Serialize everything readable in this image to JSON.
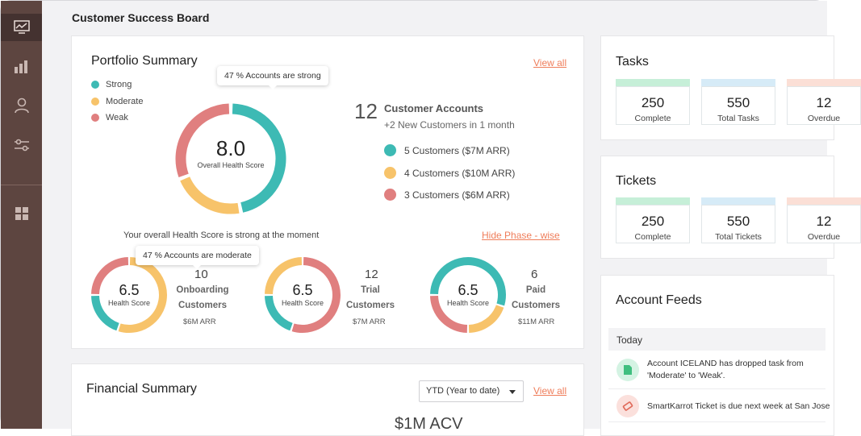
{
  "board": {
    "title": "Customer Success Board"
  },
  "colors": {
    "strong": "#3dbab4",
    "moderate": "#f7c36a",
    "weak": "#e07f7f",
    "accent": "#ef7d5a",
    "sidebar": "#5d4540"
  },
  "sidebar": {
    "items": [
      {
        "icon": "monitor-chart-icon",
        "active": true
      },
      {
        "icon": "bar-chart-icon",
        "active": false
      },
      {
        "icon": "user-icon",
        "active": false
      },
      {
        "icon": "filter-sliders-icon",
        "active": false
      },
      {
        "icon": "grid-icon",
        "active": false
      }
    ]
  },
  "portfolio": {
    "title": "Portfolio Summary",
    "view_all": "View all",
    "legend": [
      {
        "label": "Strong",
        "color": "#3dbab4"
      },
      {
        "label": "Moderate",
        "color": "#f7c36a"
      },
      {
        "label": "Weak",
        "color": "#e07f7f"
      }
    ],
    "tooltip_main": "47 % Accounts are strong",
    "overall_score": "8.0",
    "overall_label": "Overall Health Score",
    "overall_split": {
      "strong": 47,
      "moderate": 22,
      "weak": 31
    },
    "customer_accounts": {
      "count": "12",
      "title": "Customer Accounts",
      "subtitle": "+2 New Customers in 1 month",
      "items": [
        {
          "label": "5 Customers ($7M  ARR)",
          "color": "#3dbab4"
        },
        {
          "label": "4 Customers ($10M ARR)",
          "color": "#f7c36a"
        },
        {
          "label": "3 Customers ($6M  ARR)",
          "color": "#e07f7f"
        }
      ]
    },
    "health_statement": "Your overall Health Score is strong at the moment",
    "hide_phase": "Hide  Phase - wise",
    "tooltip_phase": "47 % Accounts are moderate",
    "phases": [
      {
        "score": "6.5",
        "score_label": "Health Score",
        "count": "10",
        "line1": "Onboarding",
        "line2": "Customers",
        "arr": "$6M ARR",
        "split": {
          "moderate": 55,
          "strong": 20,
          "weak": 25
        }
      },
      {
        "score": "6.5",
        "score_label": "Health Score",
        "count": "12",
        "line1": "Trial",
        "line2": "Customers",
        "arr": "$7M ARR",
        "split": {
          "weak": 55,
          "strong": 20,
          "moderate": 25
        }
      },
      {
        "score": "6.5",
        "score_label": "Health Score",
        "count": "6",
        "line1": "Paid",
        "line2": "Customers",
        "arr": "$11M ARR",
        "split": {
          "strong": 55,
          "moderate": 20,
          "weak": 25
        }
      }
    ]
  },
  "financial": {
    "title": "Financial Summary",
    "period": "YTD (Year to date)",
    "view_all": "View all",
    "value_partial": "$1M  ACV"
  },
  "tasks": {
    "title": "Tasks",
    "kpis": [
      {
        "value": "250",
        "label": "Complete",
        "strip": "#c6efd8"
      },
      {
        "value": "550",
        "label": "Total Tasks",
        "strip": "#d6ebf7"
      },
      {
        "value": "12",
        "label": "Overdue",
        "strip": "#fbdfd6"
      }
    ]
  },
  "tickets": {
    "title": "Tickets",
    "kpis": [
      {
        "value": "250",
        "label": "Complete",
        "strip": "#c6efd8"
      },
      {
        "value": "550",
        "label": "Total Tickets",
        "strip": "#d6ebf7"
      },
      {
        "value": "12",
        "label": "Overdue",
        "strip": "#fbdfd6"
      }
    ]
  },
  "feeds": {
    "title": "Account Feeds",
    "group": "Today",
    "items": [
      {
        "icon": "document-icon",
        "line1": "Account ICELAND has dropped  task from",
        "line2": "'Moderate'  to 'Weak'."
      },
      {
        "icon": "ticket-icon",
        "line1": "SmartKarrot Ticket is due next week at San Jose"
      }
    ]
  }
}
